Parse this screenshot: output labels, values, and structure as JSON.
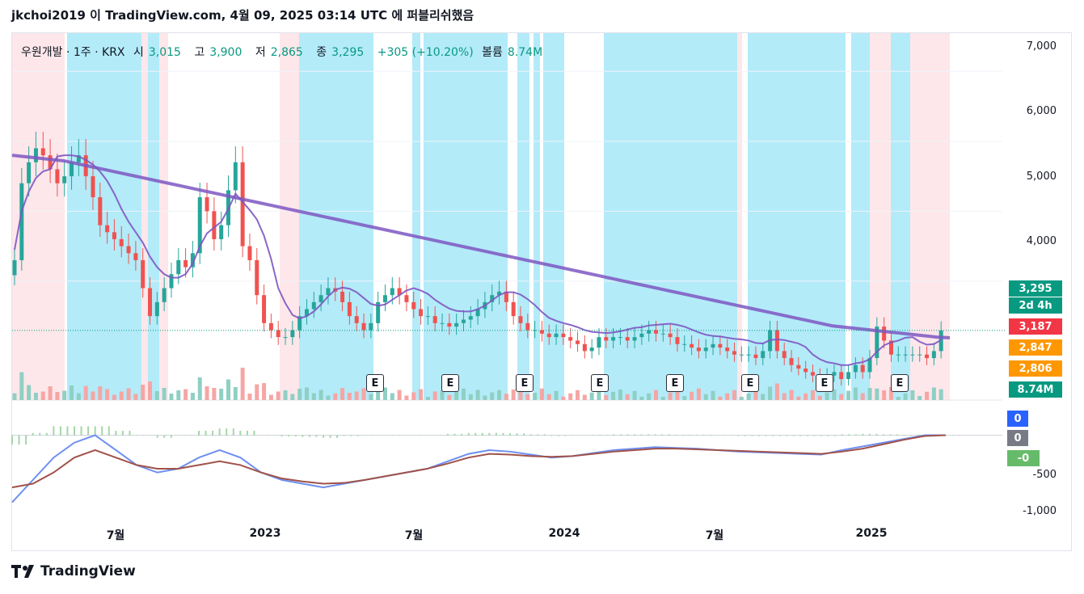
{
  "header": {
    "text": "jkchoi2019 이 TradingView.com, 4월 09, 2025 03:14 UTC 에 퍼블리쉬했음"
  },
  "legend": {
    "symbol": "우원개발 · 1주 · KRX",
    "open_label": "시",
    "open": "3,015",
    "high_label": "고",
    "high": "3,900",
    "low_label": "저",
    "low": "2,865",
    "close_label": "종",
    "close": "3,295",
    "change": "+305 (+10.20%)",
    "volume_label": "볼륨",
    "volume": "8.74M"
  },
  "price_tags": {
    "close": "3,295",
    "countdown": "2d 4h",
    "ma_red": "3,187",
    "ma_orange": "2,847",
    "ma_orange2": "2,806",
    "volume": "8.74M",
    "macd1": "0",
    "macd2": "0",
    "macd3": "-0"
  },
  "colors": {
    "up": "#26a69a",
    "down": "#ef5350",
    "ma_purple": "#7e57c2",
    "blue_band": "#b3ebf9",
    "pink_band": "#fde7ea",
    "macd_line": "#6d8ff0",
    "signal_line": "#a0524a",
    "hist_up": "#a5d6a7",
    "tag_green": "#089981",
    "tag_red": "#f23645",
    "tag_orange": "#ff9800",
    "tag_blue": "#2962ff",
    "tag_gray": "#787b86",
    "tag_lightgreen": "#66bb6a"
  },
  "footer": {
    "brand": "TradingView"
  },
  "chart_data": {
    "type": "candlestick",
    "symbol": "우원개발",
    "interval": "1주",
    "exchange": "KRX",
    "x_ticks": [
      "7월",
      "2023",
      "7월",
      "2024",
      "7월",
      "2025"
    ],
    "y_ticks": [
      "7,000",
      "6,000",
      "5,000",
      "4,000"
    ],
    "ylim": [
      2300,
      7200
    ],
    "macd_ticks": [
      "-500",
      "-1,000"
    ],
    "macd_ylim": [
      -1100,
      450
    ],
    "earnings_markers": [
      "E",
      "E",
      "E",
      "E",
      "E",
      "E",
      "E"
    ],
    "closes": [
      4300,
      5400,
      5700,
      5900,
      5800,
      5600,
      5400,
      5500,
      5700,
      5800,
      5500,
      5200,
      4800,
      4700,
      4600,
      4500,
      4400,
      4300,
      3900,
      3500,
      3700,
      3900,
      4100,
      4300,
      4200,
      4400,
      5200,
      5000,
      4600,
      4800,
      5300,
      5700,
      4500,
      4300,
      3800,
      3400,
      3300,
      3200,
      3200,
      3300,
      3500,
      3600,
      3700,
      3800,
      3900,
      3850,
      3700,
      3500,
      3400,
      3300,
      3400,
      3700,
      3800,
      3900,
      3800,
      3700,
      3600,
      3500,
      3500,
      3400,
      3400,
      3350,
      3400,
      3450,
      3500,
      3600,
      3700,
      3800,
      3850,
      3700,
      3500,
      3400,
      3300,
      3300,
      3250,
      3200,
      3250,
      3200,
      3150,
      3100,
      3000,
      3050,
      3200,
      3150,
      3200,
      3200,
      3150,
      3200,
      3250,
      3300,
      3250,
      3250,
      3200,
      3100,
      3100,
      3050,
      3000,
      3050,
      3100,
      3050,
      3000,
      2950,
      2950,
      2950,
      2900,
      3000,
      3300,
      3000,
      2900,
      2800,
      2750,
      2700,
      2650,
      2600,
      2650,
      2700,
      2600,
      2700,
      2800,
      2700,
      2900,
      3350,
      3150,
      2950,
      2950,
      2950,
      2950,
      2950,
      2900,
      3000,
      3295
    ],
    "ma_long": [
      5800,
      5780,
      5760,
      5740,
      5720,
      5680,
      5640,
      5600,
      5560,
      5520,
      5480,
      5440,
      5400,
      5360,
      5320,
      5280,
      5240,
      5200,
      5160,
      5120,
      5080,
      5040,
      5000,
      4960,
      4920,
      4880,
      4840,
      4800,
      4760,
      4720,
      4680,
      4640,
      4600,
      4560,
      4520,
      4480,
      4440,
      4400,
      4360,
      4320,
      4280,
      4240,
      4200,
      4160,
      4120,
      4080,
      4040,
      4000,
      3960,
      3920,
      3880,
      3840,
      3800,
      3760,
      3720,
      3680,
      3640,
      3600,
      3560,
      3520,
      3480,
      3440,
      3400,
      3360,
      3340,
      3320,
      3300,
      3280,
      3260,
      3240,
      3220,
      3200,
      3190
    ],
    "macd": [
      -900,
      -600,
      -300,
      -100,
      0,
      -200,
      -400,
      -500,
      -450,
      -300,
      -200,
      -300,
      -500,
      -600,
      -650,
      -700,
      -650,
      -600,
      -550,
      -500,
      -450,
      -350,
      -250,
      -200,
      -220,
      -260,
      -300,
      -280,
      -240,
      -200,
      -180,
      -160,
      -170,
      -180,
      -200,
      -220,
      -230,
      -240,
      -250,
      -260,
      -200,
      -150,
      -100,
      -50,
      0,
      0
    ],
    "signal": [
      -700,
      -650,
      -500,
      -300,
      -200,
      -300,
      -400,
      -450,
      -450,
      -400,
      -350,
      -400,
      -500,
      -580,
      -620,
      -650,
      -640,
      -600,
      -550,
      -500,
      -450,
      -380,
      -300,
      -250,
      -260,
      -280,
      -290,
      -280,
      -250,
      -220,
      -200,
      -180,
      -180,
      -190,
      -200,
      -210,
      -220,
      -230,
      -240,
      -250,
      -220,
      -180,
      -120,
      -60,
      -10,
      0
    ]
  }
}
